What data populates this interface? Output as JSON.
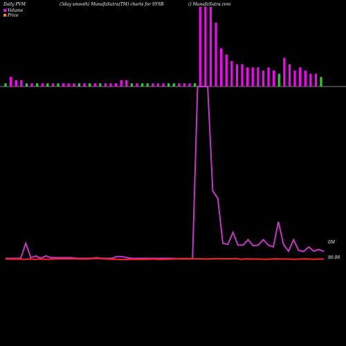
{
  "chart_data": {
    "type": "bar+line",
    "header": {
      "left": "Daily PVM",
      "middle": "(5day smooth) MunafaSutra(TM) charts for SYSB",
      "right": "() MunafaSutra.com"
    },
    "legend": [
      {
        "name": "Volume",
        "color": "#ff00ff"
      },
      {
        "name": "Price",
        "color": "#ff8c00"
      }
    ],
    "volume_bars": {
      "values": [
        1,
        3,
        2,
        2,
        1,
        1,
        1,
        1,
        1,
        1,
        1,
        1,
        1,
        1,
        1,
        1,
        1,
        1,
        1,
        1,
        1,
        1,
        2,
        2,
        1,
        1,
        1,
        1,
        1,
        1,
        1,
        1,
        1,
        1,
        1,
        1,
        1,
        25,
        25,
        25,
        20,
        12,
        10,
        8,
        7,
        7,
        6,
        6,
        6,
        5,
        6,
        5,
        4,
        9,
        7,
        5,
        6,
        5,
        4,
        4,
        3
      ],
      "colors": [
        "green",
        "magenta",
        "magenta",
        "magenta",
        "green",
        "magenta",
        "green",
        "magenta",
        "green",
        "magenta",
        "green",
        "magenta",
        "magenta",
        "magenta",
        "green",
        "magenta",
        "green",
        "magenta",
        "green",
        "magenta",
        "magenta",
        "magenta",
        "magenta",
        "magenta",
        "green",
        "magenta",
        "green",
        "green",
        "magenta",
        "magenta",
        "magenta",
        "green",
        "green",
        "magenta",
        "magenta",
        "magenta",
        "green",
        "magenta",
        "magenta",
        "magenta",
        "magenta",
        "magenta",
        "magenta",
        "magenta",
        "magenta",
        "magenta",
        "magenta",
        "magenta",
        "magenta",
        "magenta",
        "magenta",
        "magenta",
        "green",
        "magenta",
        "magenta",
        "magenta",
        "magenta",
        "magenta",
        "magenta",
        "magenta",
        "green"
      ]
    },
    "volume_line": [
      0.3,
      0.3,
      0.3,
      0.3,
      4.5,
      0.5,
      1.0,
      0.3,
      1.0,
      0.5,
      0.5,
      0.5,
      0.5,
      0.5,
      0.3,
      0.3,
      0.3,
      0.3,
      0.5,
      0.3,
      0.3,
      0.3,
      0.8,
      0.8,
      0.5,
      0.3,
      0.3,
      0.3,
      0.3,
      0.3,
      0.3,
      0.3,
      0.3,
      0.3,
      0.2,
      0.2,
      0.2,
      0.2,
      48,
      48,
      48,
      19,
      17,
      4.5,
      4.2,
      7.5,
      4.0,
      4.0,
      5.5,
      3.8,
      4.0,
      5.5,
      4.0,
      3.5,
      10.5,
      4.2,
      2.3,
      5.5,
      2.5,
      2.2,
      3.5,
      2.3,
      2.8,
      2.2
    ],
    "price_line": [
      0.45,
      0.45,
      0.45,
      0.4,
      0.45,
      0.4,
      0.45,
      0.4,
      0.45,
      0.5,
      0.5,
      0.5,
      0.5,
      0.45,
      0.5,
      0.55,
      0.55,
      0.5,
      0.4,
      0.4,
      0.35,
      0.4,
      0.4,
      0.4,
      0.4,
      0.45,
      0.4,
      0.4,
      0.45,
      0.5,
      0.55,
      0.55,
      0.5,
      0.5,
      0.45,
      0.5,
      0.55,
      0.5,
      0.5,
      0.55,
      0.4,
      0.5,
      0.45,
      0.45,
      0.4,
      0.45,
      0.5,
      0.45,
      0.45,
      0.4,
      0.45,
      0.5,
      0.4,
      0.45,
      0.45
    ],
    "labels": {
      "volume_right": "0M",
      "price_right": "90.08"
    }
  }
}
